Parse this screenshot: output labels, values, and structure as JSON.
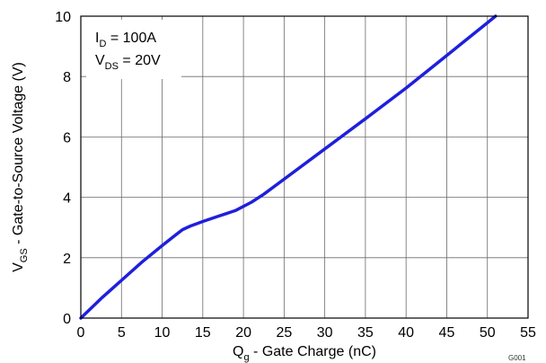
{
  "chart_data": {
    "type": "line",
    "xlabel": {
      "main": "Q",
      "sub": "g",
      "rest": " - Gate Charge  (nC)"
    },
    "ylabel": {
      "main": "V",
      "sub": "GS",
      "rest": " - Gate-to-Source Voltage (V)"
    },
    "xlim": [
      0,
      55
    ],
    "ylim": [
      0,
      10
    ],
    "xticks": [
      "0",
      "5",
      "10",
      "15",
      "20",
      "25",
      "30",
      "35",
      "40",
      "45",
      "50",
      "55"
    ],
    "yticks": [
      "0",
      "2",
      "4",
      "6",
      "8",
      "10"
    ],
    "grid": true,
    "annotations": [
      {
        "main": "I",
        "sub": "D",
        "rest": " = 100A"
      },
      {
        "main": "V",
        "sub": "DS",
        "rest": " = 20V"
      }
    ],
    "figure_code": "G001",
    "series": [
      {
        "color": "#1f1fdc",
        "x": [
          0,
          2.5,
          5,
          7.5,
          10,
          11.5,
          12.5,
          13.5,
          15,
          17,
          19,
          21,
          22.5,
          25,
          30,
          35,
          40,
          45,
          50,
          51
        ],
        "y": [
          0,
          0.65,
          1.25,
          1.85,
          2.4,
          2.72,
          2.93,
          3.05,
          3.2,
          3.38,
          3.56,
          3.84,
          4.1,
          4.6,
          5.6,
          6.6,
          7.62,
          8.7,
          9.78,
          10
        ]
      }
    ]
  }
}
